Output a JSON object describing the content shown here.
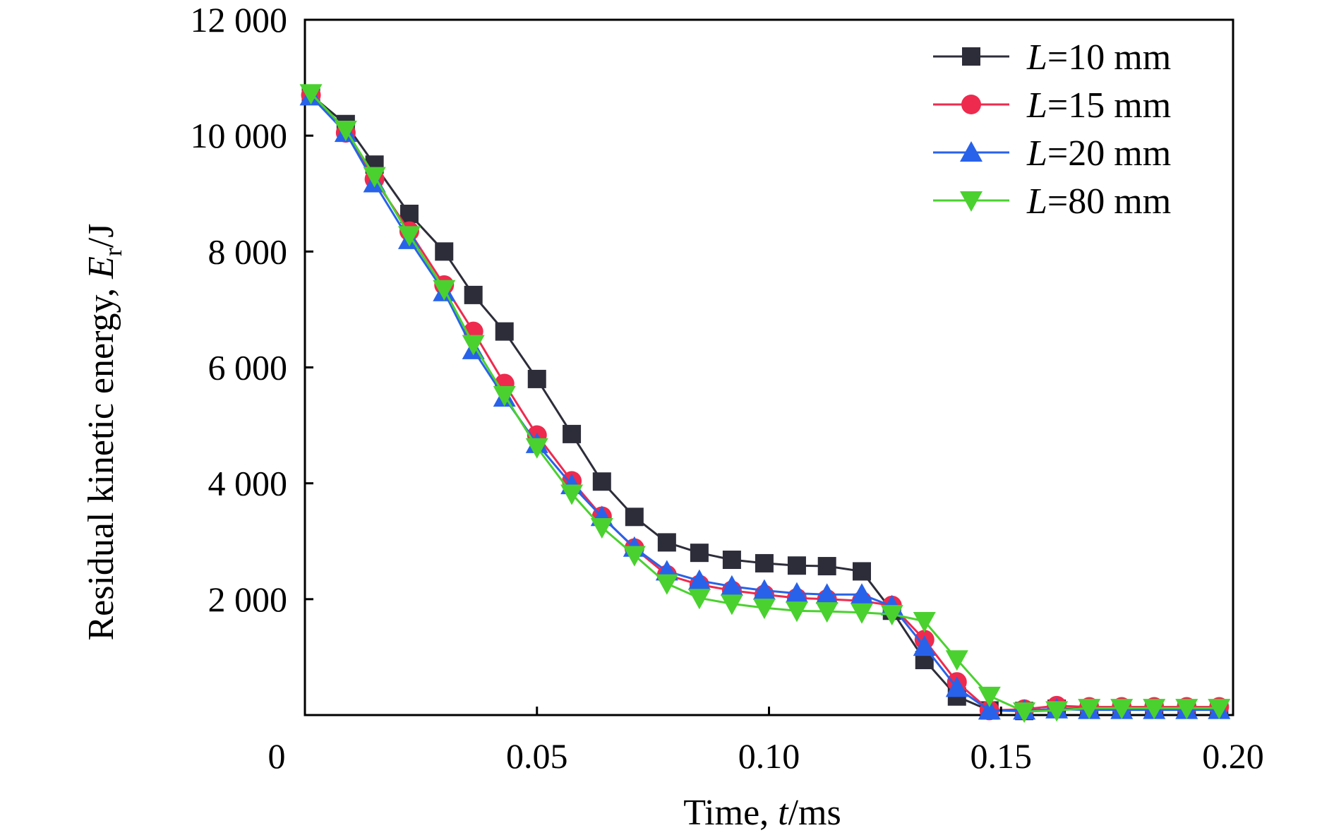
{
  "chart_data": {
    "type": "line",
    "xlabel_prefix": "Time, ",
    "xlabel_var": "t",
    "xlabel_unit": "/ms",
    "ylabel_prefix": "Residual kinetic energy, ",
    "ylabel_var": "E",
    "ylabel_sub": "r",
    "ylabel_unit": "/J",
    "xlim": [
      0,
      0.2
    ],
    "ylim": [
      0,
      12000
    ],
    "x_ticks": [
      0,
      0.05,
      0.1,
      0.15,
      0.2
    ],
    "x_tick_labels": [
      "0",
      "0.05",
      "0.10",
      "0.15",
      "0.20"
    ],
    "y_ticks": [
      2000,
      4000,
      6000,
      8000,
      10000,
      12000
    ],
    "y_tick_labels": [
      "2 000",
      "4 000",
      "6 000",
      "8 000",
      "10 000",
      "12 000"
    ],
    "grid": false,
    "legend_position": "top-right",
    "x": [
      0.0013,
      0.0088,
      0.015,
      0.0225,
      0.03,
      0.0363,
      0.043,
      0.05,
      0.0575,
      0.064,
      0.071,
      0.078,
      0.085,
      0.092,
      0.099,
      0.106,
      0.1125,
      0.12,
      0.1265,
      0.1335,
      0.1405,
      0.1475,
      0.155,
      0.162,
      0.169,
      0.176,
      0.183,
      0.19,
      0.197
    ],
    "series": [
      {
        "name_var": "L",
        "name_rest": "=10 mm",
        "color": "#2d2d3a",
        "marker": "square",
        "values": [
          10700,
          10200,
          9500,
          8650,
          8000,
          7250,
          6620,
          5800,
          4850,
          4030,
          3420,
          2980,
          2800,
          2680,
          2620,
          2580,
          2570,
          2480,
          1800,
          950,
          320,
          80,
          70,
          110,
          110,
          110,
          110,
          110,
          110
        ]
      },
      {
        "name_var": "L",
        "name_rest": "=15 mm",
        "color": "#ee2a4e",
        "marker": "circle",
        "values": [
          10700,
          10050,
          9250,
          8350,
          7420,
          6620,
          5720,
          4830,
          4040,
          3430,
          2880,
          2420,
          2250,
          2150,
          2080,
          2020,
          2000,
          1970,
          1890,
          1300,
          570,
          80,
          100,
          160,
          140,
          140,
          140,
          140,
          140
        ]
      },
      {
        "name_var": "L",
        "name_rest": "=20 mm",
        "color": "#2862ea",
        "marker": "triangle-up",
        "values": [
          10680,
          10050,
          9180,
          8200,
          7300,
          6300,
          5480,
          4680,
          3970,
          3420,
          2890,
          2480,
          2320,
          2220,
          2150,
          2100,
          2080,
          2080,
          1880,
          1180,
          470,
          80,
          80,
          100,
          90,
          90,
          90,
          90,
          90
        ]
      },
      {
        "name_var": "L",
        "name_rest": "=80 mm",
        "color": "#4ad12f",
        "marker": "triangle-down",
        "values": [
          10730,
          10100,
          9300,
          8280,
          7350,
          6400,
          5520,
          4620,
          3820,
          3240,
          2760,
          2270,
          2020,
          1920,
          1850,
          1800,
          1790,
          1770,
          1740,
          1620,
          960,
          330,
          60,
          80,
          120,
          120,
          120,
          120,
          120
        ]
      }
    ]
  }
}
